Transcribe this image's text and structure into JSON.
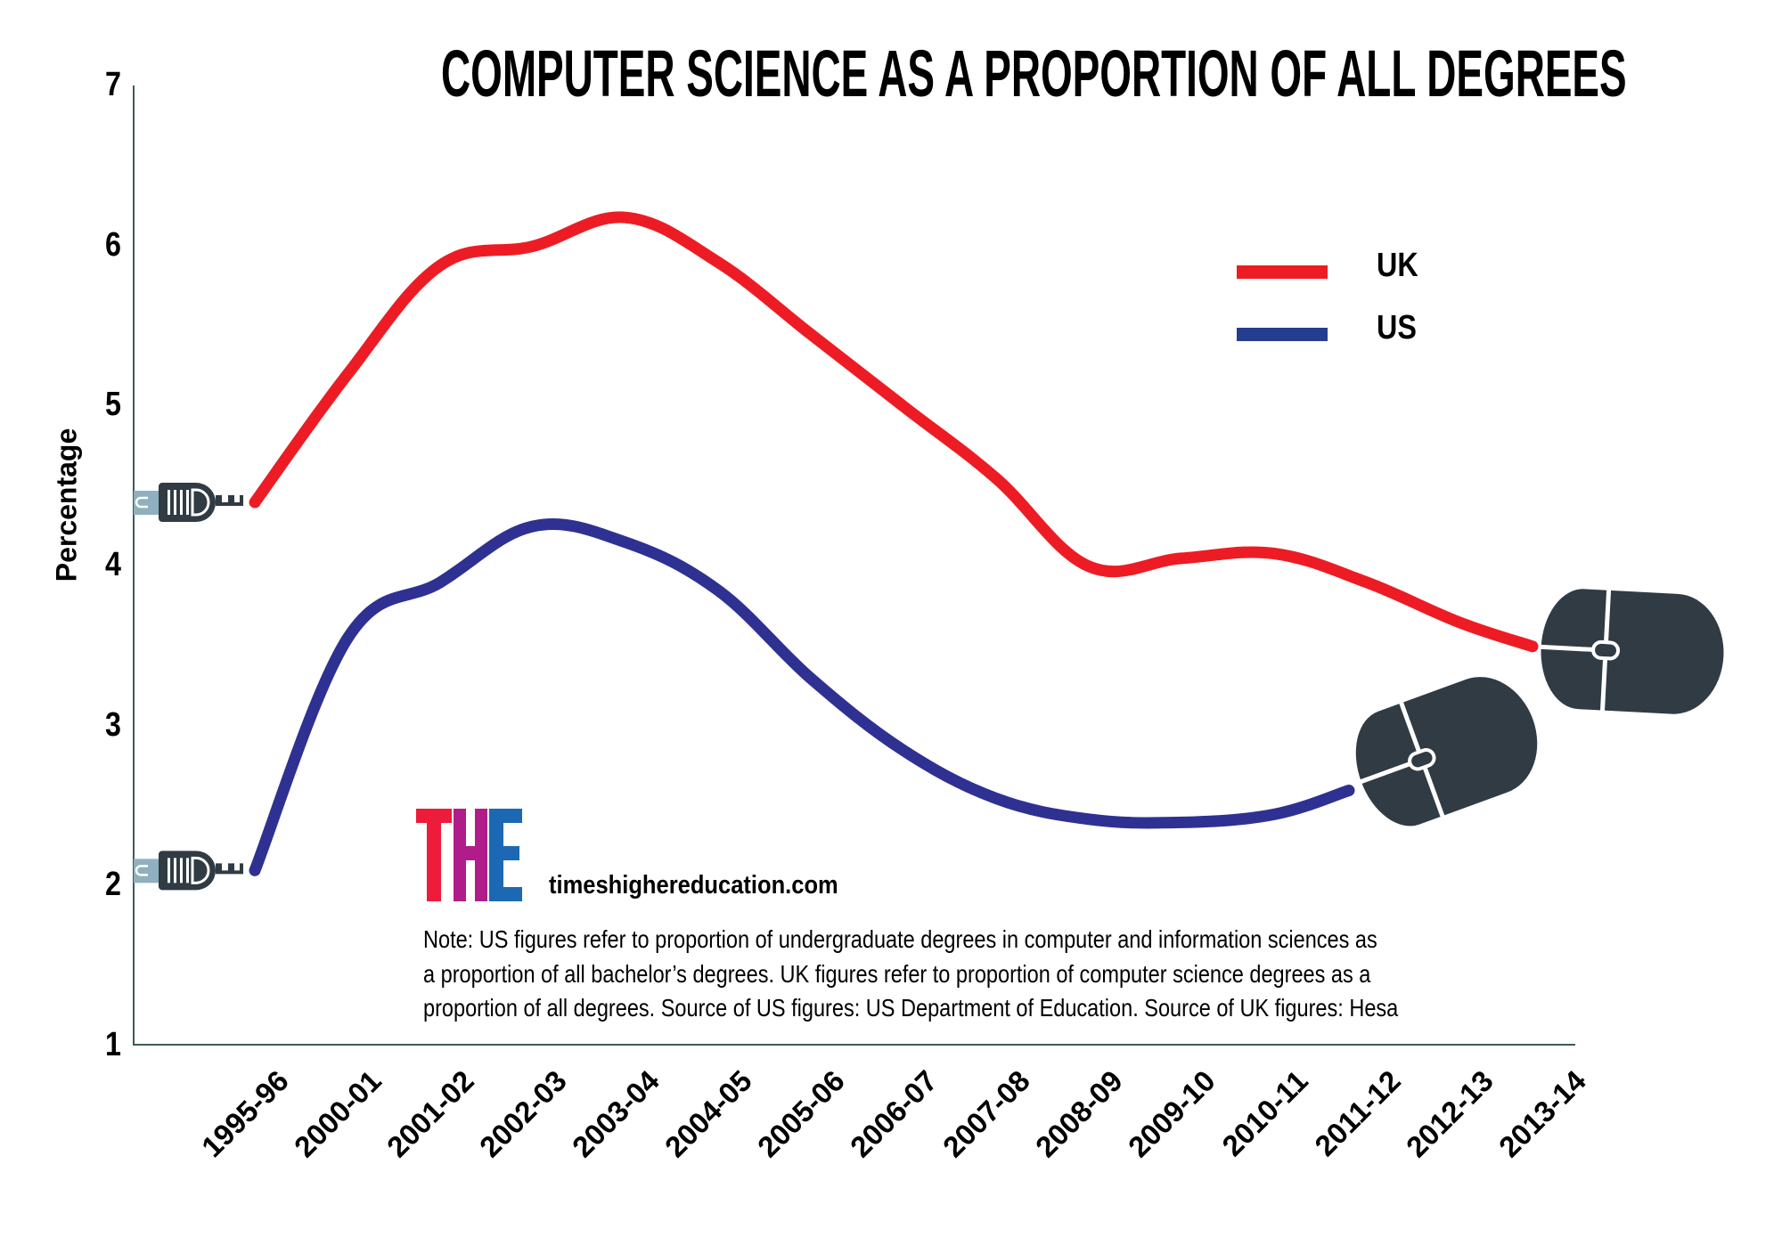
{
  "chart_data": {
    "type": "line",
    "title": "COMPUTER SCIENCE AS A PROPORTION OF ALL DEGREES",
    "xlabel": "",
    "ylabel": "Percentage",
    "ylim": [
      1,
      7
    ],
    "yticks": [
      "1",
      "2",
      "3",
      "4",
      "5",
      "6",
      "7"
    ],
    "categories": [
      "1995-96",
      "2000-01",
      "2001-02",
      "2002-03",
      "2003-04",
      "2004-05",
      "2005-06",
      "2006-07",
      "2007-08",
      "2008-09",
      "2009-10",
      "2010-11",
      "2011-12",
      "2012-13",
      "2013-14"
    ],
    "grid": false,
    "legend_position": "top-right",
    "series": [
      {
        "name": "UK",
        "color": "#ed1c24",
        "values": [
          4.4,
          5.2,
          5.88,
          6.0,
          6.18,
          5.9,
          5.45,
          5.0,
          4.55,
          4.0,
          4.05,
          4.08,
          3.9,
          3.65,
          3.5
        ]
      },
      {
        "name": "US",
        "color": "#2e3192",
        "values": [
          2.1,
          3.55,
          3.9,
          4.25,
          4.15,
          3.85,
          3.3,
          2.85,
          2.55,
          2.42,
          2.4,
          2.45,
          2.6,
          null,
          null
        ]
      }
    ]
  },
  "legend": {
    "uk_label": "UK",
    "us_label": "US",
    "uk_color": "#ed1c24",
    "us_color": "#253d8f"
  },
  "branding": {
    "logo_letters": [
      "T",
      "H",
      "E"
    ],
    "logo_colors": [
      "#ee1b3a",
      "#b01d8a",
      "#1c68b4"
    ],
    "url": "timeshighereducation.com"
  },
  "note": {
    "lines": [
      "Note: US figures refer to proportion of undergraduate degrees in computer and information sciences as",
      "a proportion of all bachelor’s degrees. UK figures refer to proportion of computer science degrees as a",
      "proportion of all degrees. Source of US figures: US Department of Education. Source of UK figures: Hesa"
    ]
  },
  "icons": {
    "start": "usb-plug-icon",
    "end": "computer-mouse-icon",
    "mouse_color": "#303b44",
    "plug_tab_color": "#8fb0bf"
  }
}
